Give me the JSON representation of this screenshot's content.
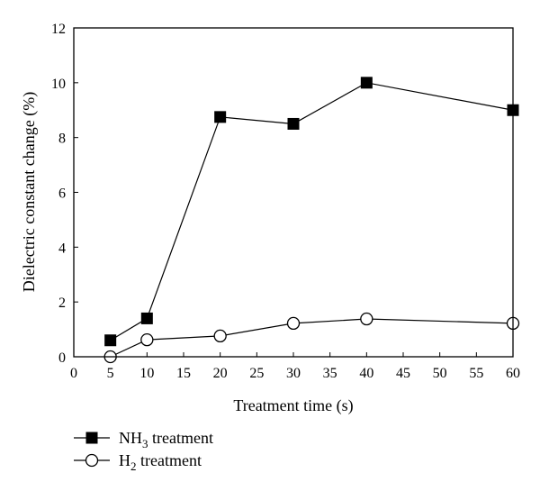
{
  "chart_data": {
    "type": "line",
    "xlabel": "Treatment time (s)",
    "ylabel": "Dielectric constant change (%)",
    "xlim": [
      0,
      60
    ],
    "ylim": [
      0,
      12
    ],
    "x_ticks": [
      "0",
      "5",
      "10",
      "15",
      "20",
      "25",
      "30",
      "35",
      "40",
      "45",
      "50",
      "55",
      "60"
    ],
    "y_ticks": [
      "0",
      "2",
      "4",
      "6",
      "8",
      "10",
      "12"
    ],
    "grid": false,
    "legend_position": "bottom-left, below plot",
    "series": [
      {
        "name": "NH3 treatment",
        "label_main": "NH",
        "label_sub": "3",
        "label_rest": " treatment",
        "marker": "filled-square",
        "color": "#000000",
        "x": [
          5,
          10,
          20,
          30,
          40,
          60
        ],
        "y": [
          0.6,
          1.4,
          8.75,
          8.5,
          10.0,
          9.0
        ]
      },
      {
        "name": "H2 treatment",
        "label_main": "H",
        "label_sub": "2",
        "label_rest": " treatment",
        "marker": "open-circle",
        "color": "#000000",
        "x": [
          5,
          10,
          20,
          30,
          40,
          60
        ],
        "y": [
          0.0,
          0.62,
          0.76,
          1.22,
          1.38,
          1.22
        ]
      }
    ]
  }
}
